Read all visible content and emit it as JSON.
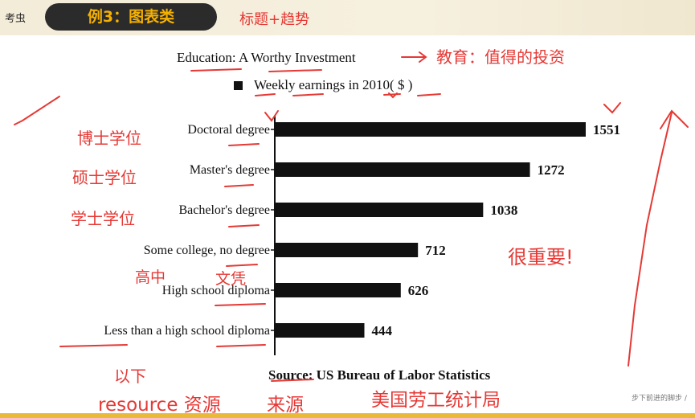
{
  "header": {
    "logo": "考虫",
    "pill_label": "例3：图表类",
    "note": "标题+趋势"
  },
  "chart_data": {
    "type": "bar",
    "orientation": "horizontal",
    "title": "Education:  A Worthy Investment",
    "subtitle": "Weekly earnings in 2010( $ )",
    "categories": [
      "Doctoral degree",
      "Master's degree",
      "Bachelor's degree",
      "Some college, no degree",
      "High school diploma",
      "Less than a high school diploma"
    ],
    "values": [
      1551,
      1272,
      1038,
      712,
      626,
      444
    ],
    "xlim": [
      0,
      1551
    ],
    "source": "Source: US Bureau of Labor Statistics",
    "bar_color": "#111111",
    "grid": false
  },
  "annotations": {
    "title_translation": "教育：值得的投资",
    "doctoral": "博士学位",
    "master": "硕士学位",
    "bachelor": "学士学位",
    "high_school": "高中",
    "diploma": "文凭",
    "important": "很重要!",
    "less_than": "以下",
    "resource": "resource 资源",
    "source": "来源",
    "bureau": "美国劳工统计局",
    "color": "#e53935"
  },
  "watermark": "步下前进的脚步 /"
}
